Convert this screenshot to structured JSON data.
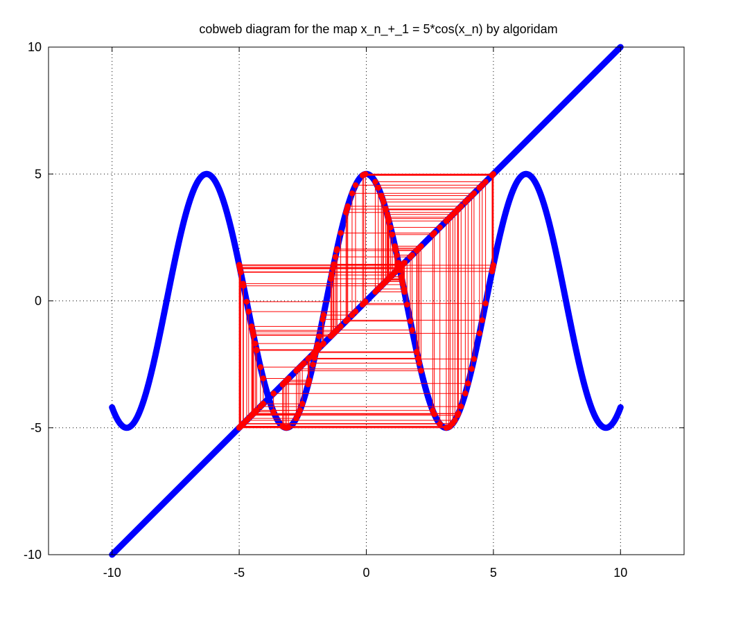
{
  "chart_data": {
    "type": "line",
    "title": "cobweb diagram for the map x_n_+_1 = 5*cos(x_n) by algoridam",
    "xlabel": "",
    "ylabel": "",
    "xlim": [
      -12.5,
      12.5
    ],
    "ylim": [
      -10,
      10
    ],
    "x_ticks": [
      "-10",
      "-5",
      "0",
      "5",
      "10"
    ],
    "y_ticks": [
      "-10",
      "-5",
      "0",
      "5",
      "10"
    ],
    "grid": true,
    "legend": "none",
    "series": [
      {
        "function": "5*cos(x)",
        "x_range": [
          -10,
          10
        ],
        "color": "#0000ff"
      },
      {
        "function": "x",
        "x_range": [
          -10,
          10
        ],
        "color": "#0000ff"
      },
      {
        "kind": "cobweb",
        "map": "5*cos(x)",
        "x0": 1.6,
        "iterations": 120,
        "color": "#ff0000"
      }
    ]
  }
}
